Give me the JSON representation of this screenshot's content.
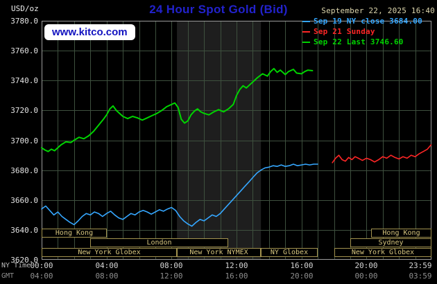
{
  "header": {
    "units_label": "USD/oz",
    "title": "24 Hour Spot Gold (Bid)",
    "datetime": "September 22, 2025 16:40",
    "watermark": "www.kitco.com"
  },
  "legend": {
    "items": [
      {
        "label": "Sep 19 NY close 3684.00",
        "color": "#35a7ff"
      },
      {
        "label": "Sep 21 Sunday",
        "color": "#ff2626"
      },
      {
        "label": "Sep 22 Last 3746.60",
        "color": "#00d400"
      }
    ]
  },
  "axes": {
    "ny_time_label": "NY Time",
    "gmt_label": "GMT",
    "ny_ticks": [
      "00:00",
      "04:00",
      "08:00",
      "12:00",
      "16:00",
      "20:00",
      "23:59"
    ],
    "gmt_ticks": [
      "04:00",
      "08:00",
      "12:00",
      "16:00",
      "20:00",
      "00:00",
      "03:59"
    ]
  },
  "sessions": [
    {
      "row": 0,
      "label": "Hong Kong",
      "from": 0,
      "to": 4.0
    },
    {
      "row": 0,
      "label": "Hong Kong",
      "from": 20.3,
      "to": 24
    },
    {
      "row": 1,
      "label": "London",
      "from": 3.0,
      "to": 11.5
    },
    {
      "row": 1,
      "label": "Sydney",
      "from": 19.0,
      "to": 24
    },
    {
      "row": 2,
      "label": "New York Globex",
      "from": 0,
      "to": 8.33
    },
    {
      "row": 2,
      "label": "New York NYMEX",
      "from": 8.33,
      "to": 13.5
    },
    {
      "row": 2,
      "label": "NY Globex",
      "from": 13.5,
      "to": 17.0
    },
    {
      "row": 2,
      "label": "New York Globex",
      "from": 18.0,
      "to": 24
    }
  ],
  "chart_data": {
    "type": "line",
    "title": "24 Hour Spot Gold (Bid)",
    "y_unit": "USD/oz",
    "x_unit": "NY time (hours)",
    "xlim": [
      0,
      24
    ],
    "ylim": [
      3620,
      3780
    ],
    "y_tick_step": 20,
    "x_tick_hours": [
      0,
      4,
      8,
      12,
      16,
      20,
      23.983
    ],
    "grid": true,
    "grid_color": "#3e503e",
    "legend_position": "top-right",
    "highlight_band": {
      "from": 8.33,
      "to": 13.5,
      "color": "#1e1e1e",
      "label": "New York NYMEX floor session"
    },
    "series": [
      {
        "id": "sep19",
        "name": "Sep 19 NY close 3684.00",
        "color": "#35a7ff",
        "width": 1.6,
        "points": [
          [
            0,
            3654
          ],
          [
            0.25,
            3656
          ],
          [
            0.5,
            3653
          ],
          [
            0.75,
            3650
          ],
          [
            1,
            3652
          ],
          [
            1.25,
            3649
          ],
          [
            1.5,
            3647
          ],
          [
            1.75,
            3645
          ],
          [
            2,
            3643.5
          ],
          [
            2.25,
            3646
          ],
          [
            2.5,
            3649
          ],
          [
            2.75,
            3651
          ],
          [
            3,
            3650
          ],
          [
            3.25,
            3652
          ],
          [
            3.5,
            3651
          ],
          [
            3.75,
            3649
          ],
          [
            4,
            3651
          ],
          [
            4.25,
            3652.5
          ],
          [
            4.5,
            3650
          ],
          [
            4.75,
            3648
          ],
          [
            5,
            3647
          ],
          [
            5.25,
            3649
          ],
          [
            5.5,
            3651
          ],
          [
            5.75,
            3650
          ],
          [
            6,
            3652
          ],
          [
            6.25,
            3653
          ],
          [
            6.5,
            3652
          ],
          [
            6.75,
            3650.5
          ],
          [
            7,
            3652
          ],
          [
            7.25,
            3653.5
          ],
          [
            7.5,
            3652.5
          ],
          [
            7.75,
            3654
          ],
          [
            8,
            3655
          ],
          [
            8.25,
            3653
          ],
          [
            8.5,
            3649
          ],
          [
            8.75,
            3646
          ],
          [
            9,
            3644
          ],
          [
            9.25,
            3642.5
          ],
          [
            9.5,
            3645
          ],
          [
            9.75,
            3647
          ],
          [
            10,
            3646
          ],
          [
            10.25,
            3648
          ],
          [
            10.5,
            3650
          ],
          [
            10.75,
            3649
          ],
          [
            11,
            3651
          ],
          [
            11.25,
            3654
          ],
          [
            11.5,
            3657
          ],
          [
            11.75,
            3660
          ],
          [
            12,
            3663
          ],
          [
            12.25,
            3666
          ],
          [
            12.5,
            3669
          ],
          [
            12.75,
            3672
          ],
          [
            13,
            3675
          ],
          [
            13.25,
            3678
          ],
          [
            13.5,
            3680
          ],
          [
            13.75,
            3681.5
          ],
          [
            14,
            3682
          ],
          [
            14.25,
            3683
          ],
          [
            14.5,
            3682.5
          ],
          [
            14.75,
            3683.5
          ],
          [
            15,
            3682.5
          ],
          [
            15.25,
            3683
          ],
          [
            15.5,
            3684
          ],
          [
            15.75,
            3683
          ],
          [
            16,
            3683.5
          ],
          [
            16.25,
            3684
          ],
          [
            16.5,
            3683.5
          ],
          [
            16.75,
            3684
          ],
          [
            17,
            3684
          ]
        ]
      },
      {
        "id": "sep21",
        "name": "Sep 21 Sunday",
        "color": "#ff2626",
        "width": 1.6,
        "points": [
          [
            17.9,
            3685
          ],
          [
            18.1,
            3688
          ],
          [
            18.3,
            3690
          ],
          [
            18.5,
            3687
          ],
          [
            18.7,
            3686
          ],
          [
            18.9,
            3688.5
          ],
          [
            19.1,
            3687
          ],
          [
            19.3,
            3689
          ],
          [
            19.5,
            3688
          ],
          [
            19.75,
            3686.5
          ],
          [
            20,
            3688
          ],
          [
            20.25,
            3687
          ],
          [
            20.5,
            3685.5
          ],
          [
            20.75,
            3687
          ],
          [
            21,
            3689
          ],
          [
            21.25,
            3688
          ],
          [
            21.5,
            3690
          ],
          [
            21.75,
            3688.5
          ],
          [
            22,
            3687.5
          ],
          [
            22.25,
            3689
          ],
          [
            22.5,
            3688
          ],
          [
            22.75,
            3690
          ],
          [
            23,
            3689
          ],
          [
            23.25,
            3691
          ],
          [
            23.5,
            3692.5
          ],
          [
            23.75,
            3694
          ],
          [
            23.98,
            3697
          ]
        ]
      },
      {
        "id": "sep22",
        "name": "Sep 22 Last 3746.60",
        "color": "#00d400",
        "width": 2,
        "points": [
          [
            0,
            3695
          ],
          [
            0.2,
            3693.5
          ],
          [
            0.4,
            3692.5
          ],
          [
            0.6,
            3694
          ],
          [
            0.8,
            3693
          ],
          [
            1,
            3695
          ],
          [
            1.2,
            3697
          ],
          [
            1.5,
            3699
          ],
          [
            1.8,
            3698.5
          ],
          [
            2,
            3700
          ],
          [
            2.3,
            3702
          ],
          [
            2.6,
            3701
          ],
          [
            2.9,
            3703
          ],
          [
            3.2,
            3706
          ],
          [
            3.5,
            3710
          ],
          [
            3.8,
            3714
          ],
          [
            4,
            3717
          ],
          [
            4.2,
            3721
          ],
          [
            4.4,
            3723
          ],
          [
            4.6,
            3720
          ],
          [
            4.8,
            3718
          ],
          [
            5,
            3716
          ],
          [
            5.3,
            3714.5
          ],
          [
            5.6,
            3716
          ],
          [
            5.9,
            3715
          ],
          [
            6.2,
            3713.5
          ],
          [
            6.5,
            3715
          ],
          [
            6.8,
            3716.5
          ],
          [
            7.1,
            3718
          ],
          [
            7.4,
            3720
          ],
          [
            7.7,
            3722.5
          ],
          [
            8,
            3724
          ],
          [
            8.2,
            3725
          ],
          [
            8.4,
            3722
          ],
          [
            8.6,
            3714
          ],
          [
            8.8,
            3711.5
          ],
          [
            9,
            3713
          ],
          [
            9.2,
            3717
          ],
          [
            9.4,
            3719.5
          ],
          [
            9.6,
            3721
          ],
          [
            9.8,
            3719
          ],
          [
            10,
            3718
          ],
          [
            10.3,
            3717
          ],
          [
            10.6,
            3719
          ],
          [
            10.9,
            3720.5
          ],
          [
            11.2,
            3719
          ],
          [
            11.5,
            3721
          ],
          [
            11.8,
            3724
          ],
          [
            12,
            3730
          ],
          [
            12.2,
            3734
          ],
          [
            12.4,
            3736.5
          ],
          [
            12.6,
            3735
          ],
          [
            12.8,
            3737
          ],
          [
            13,
            3739
          ],
          [
            13.3,
            3742
          ],
          [
            13.6,
            3744.5
          ],
          [
            13.9,
            3743
          ],
          [
            14.1,
            3746
          ],
          [
            14.3,
            3748
          ],
          [
            14.5,
            3745.5
          ],
          [
            14.7,
            3747
          ],
          [
            15,
            3744
          ],
          [
            15.2,
            3746
          ],
          [
            15.5,
            3747.5
          ],
          [
            15.7,
            3745
          ],
          [
            16,
            3744.5
          ],
          [
            16.2,
            3746
          ],
          [
            16.4,
            3747
          ],
          [
            16.67,
            3746.6
          ]
        ]
      }
    ]
  }
}
